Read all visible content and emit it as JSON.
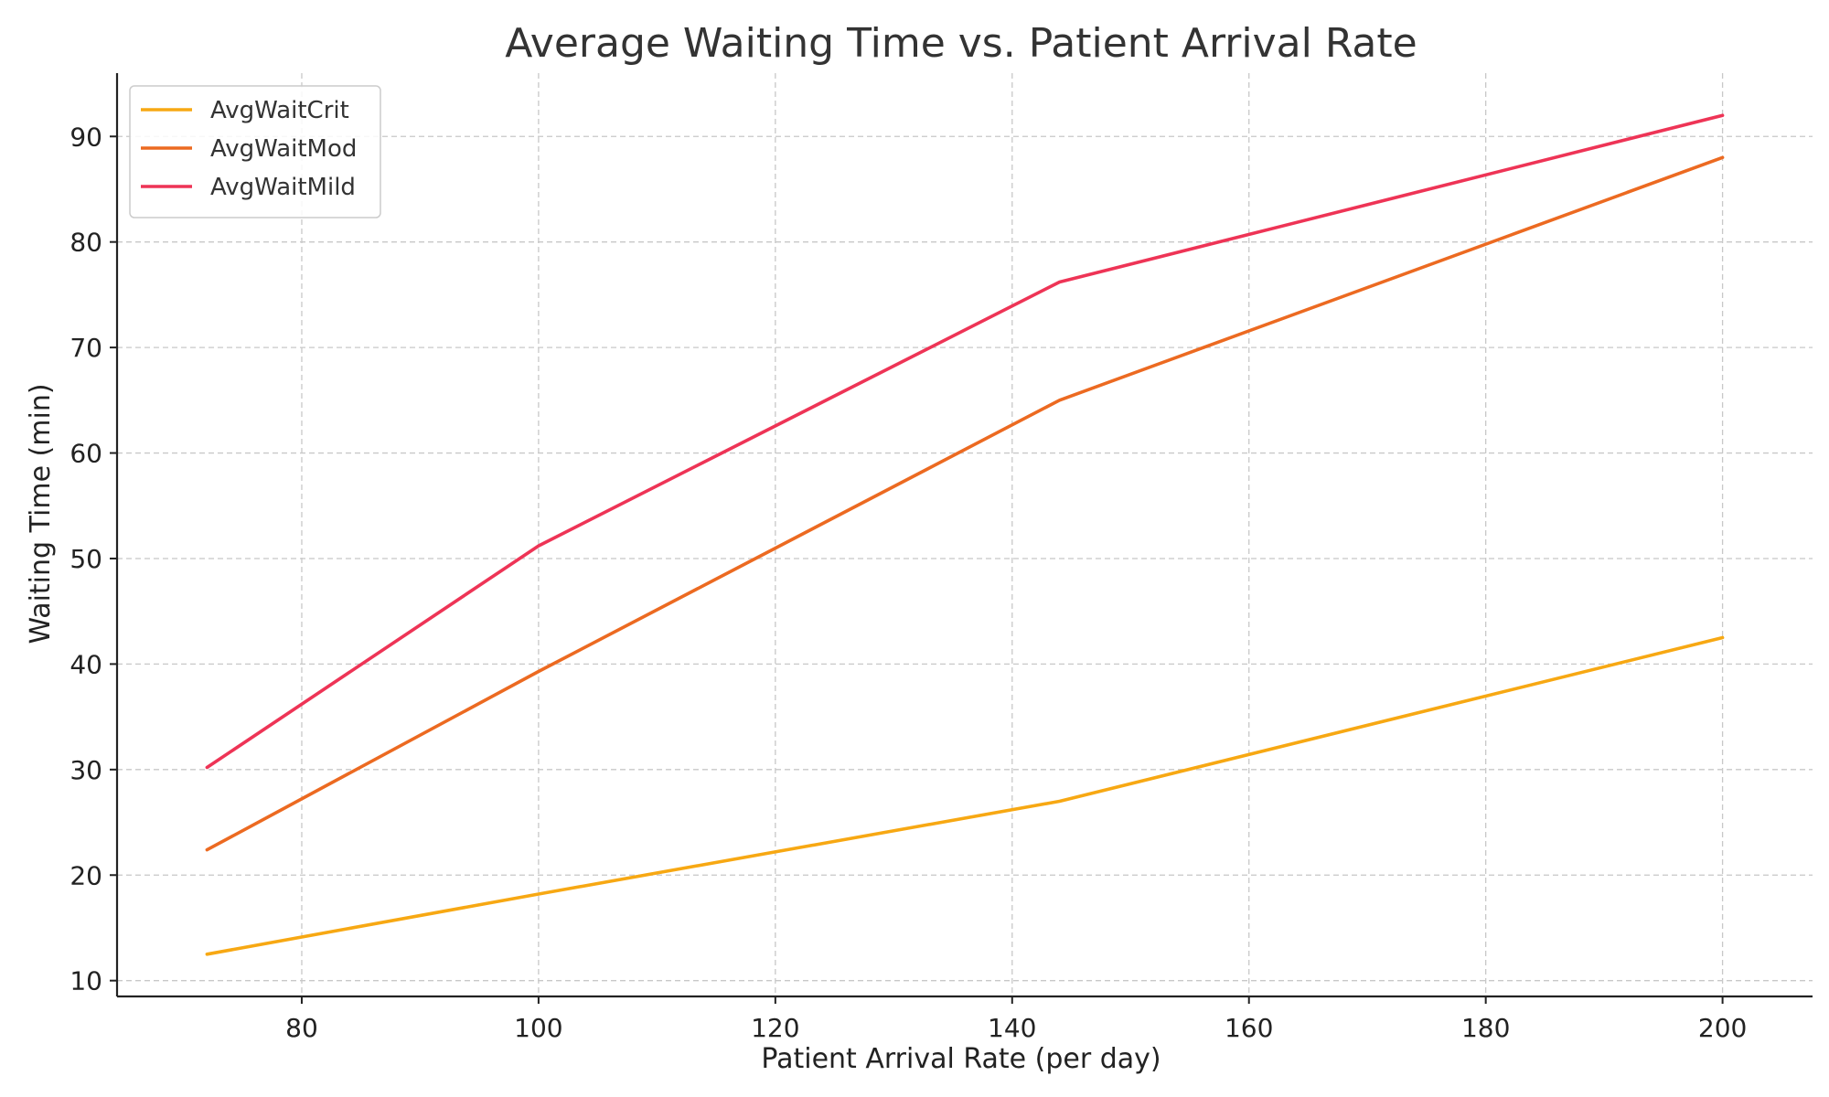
{
  "chart_data": {
    "type": "line",
    "title": "Average Waiting Time vs. Patient Arrival Rate",
    "xlabel": "Patient Arrival Rate (per day)",
    "ylabel": "Waiting Time (min)",
    "x": [
      72,
      100,
      144,
      200
    ],
    "xlim": [
      64.4,
      207.6
    ],
    "ylim": [
      8.5,
      96
    ],
    "xticks": [
      80,
      100,
      120,
      140,
      160,
      180,
      200
    ],
    "yticks": [
      10,
      20,
      30,
      40,
      50,
      60,
      70,
      80,
      90
    ],
    "grid": true,
    "legend_position": "top-left",
    "series": [
      {
        "name": "AvgWaitCrit",
        "color": "#f7a813",
        "values": [
          12.5,
          18.2,
          27.0,
          42.5
        ]
      },
      {
        "name": "AvgWaitMod",
        "color": "#ec6a21",
        "values": [
          22.4,
          39.3,
          65.0,
          88.0
        ]
      },
      {
        "name": "AvgWaitMild",
        "color": "#ee3456",
        "values": [
          30.2,
          51.2,
          76.2,
          92.0
        ]
      }
    ]
  }
}
